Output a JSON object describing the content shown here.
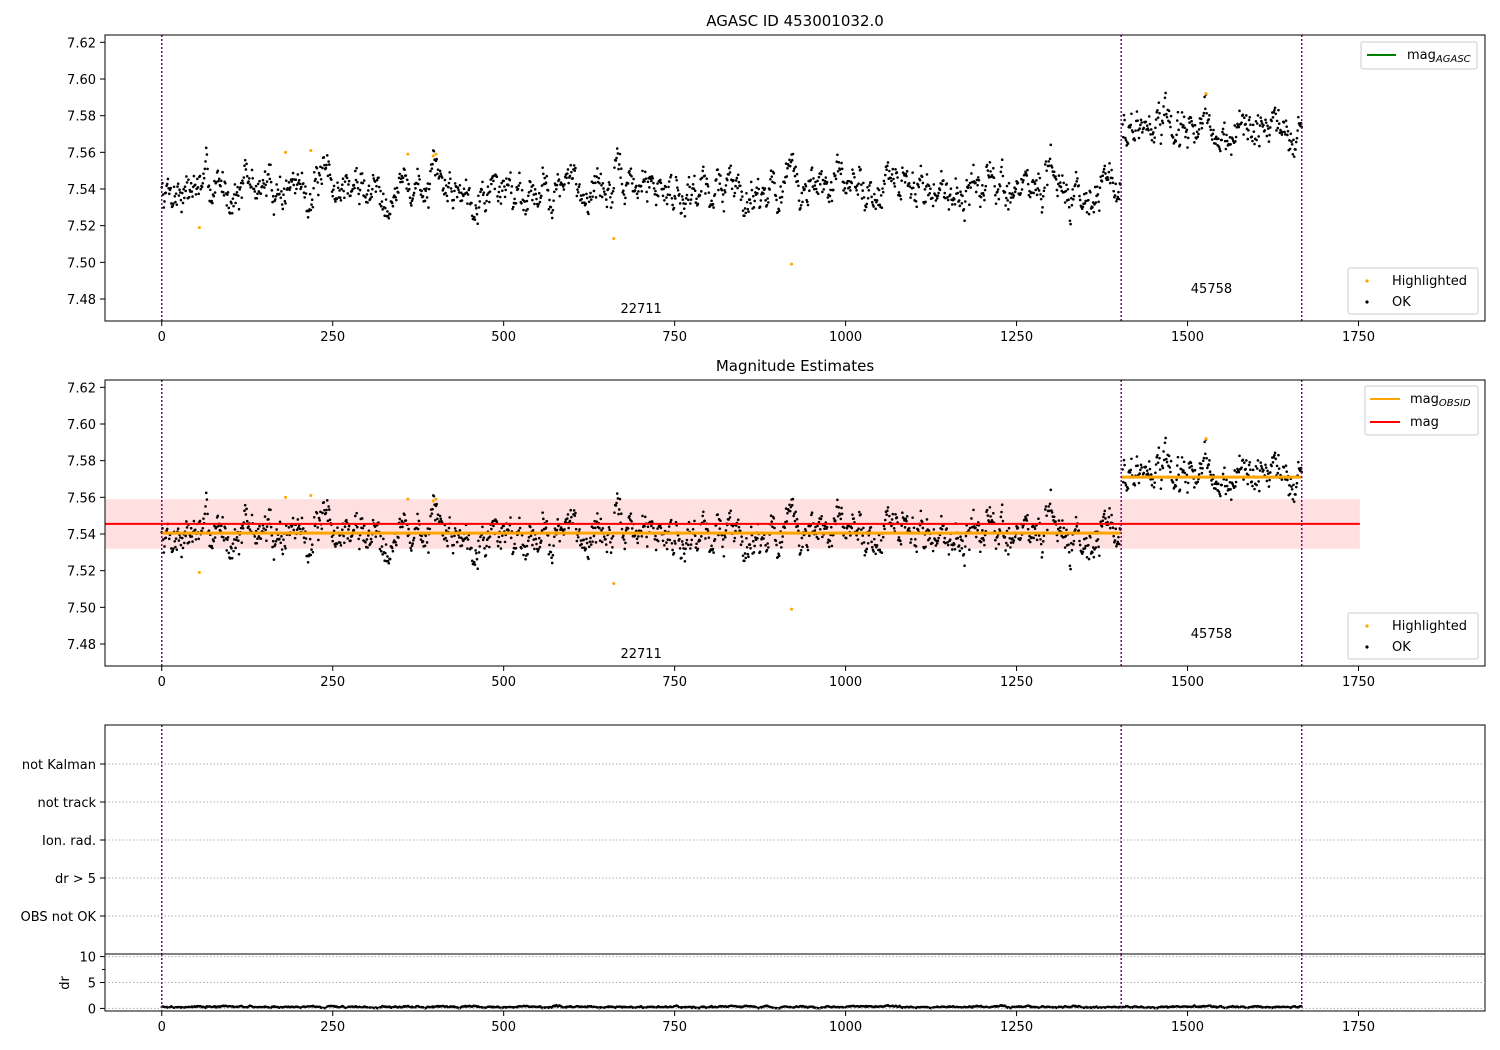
{
  "chart_data": [
    {
      "type": "scatter",
      "title": "AGASC ID 453001032.0",
      "xlim": [
        -83,
        1935
      ],
      "ylim": [
        7.468,
        7.624
      ],
      "x_ticks": [
        0,
        250,
        500,
        750,
        1000,
        1250,
        1500,
        1750
      ],
      "y_ticks": [
        7.48,
        7.5,
        7.52,
        7.54,
        7.56,
        7.58,
        7.6,
        7.62
      ],
      "obsid_boundaries": [
        0,
        1403,
        1667
      ],
      "obsid_labels": [
        {
          "text": "22711",
          "x": 701,
          "y": 7.475
        },
        {
          "text": "45758",
          "x": 1535,
          "y": 7.486
        }
      ],
      "series": [
        {
          "name": "OK",
          "noise": {
            "seed": 7,
            "segments": [
              {
                "x": [
                  0,
                  1402
                ],
                "center": 7.541,
                "spread": 0.009
              },
              {
                "x": [
                  1405,
                  1667
                ],
                "center": 7.571,
                "spread": 0.009
              }
            ]
          }
        },
        {
          "name": "Highlighted",
          "points": [
            [
              55,
              7.519
            ],
            [
              181,
              7.56
            ],
            [
              218,
              7.561
            ],
            [
              360,
              7.559
            ],
            [
              397,
              7.558
            ],
            [
              401,
              7.559
            ],
            [
              661,
              7.513
            ],
            [
              921,
              7.499
            ],
            [
              1527,
              7.592
            ]
          ]
        }
      ],
      "lines": [],
      "legend": [
        {
          "position": "top-right",
          "entries": [
            {
              "label": "mag",
              "sub": "AGASC",
              "kind": "line",
              "color": "#008000"
            }
          ]
        },
        {
          "position": "bottom-right",
          "entries": [
            {
              "label": "Highlighted",
              "kind": "marker",
              "color": "#ffa500"
            },
            {
              "label": "OK",
              "kind": "marker",
              "color": "#000000"
            }
          ]
        }
      ]
    },
    {
      "type": "scatter",
      "title": "Magnitude Estimates",
      "xlim": [
        -83,
        1935
      ],
      "ylim": [
        7.468,
        7.624
      ],
      "x_ticks": [
        0,
        250,
        500,
        750,
        1000,
        1250,
        1500,
        1750
      ],
      "y_ticks": [
        7.48,
        7.5,
        7.52,
        7.54,
        7.56,
        7.58,
        7.6,
        7.62
      ],
      "obsid_boundaries": [
        0,
        1403,
        1667
      ],
      "obsid_labels": [
        {
          "text": "22711",
          "x": 701,
          "y": 7.475
        },
        {
          "text": "45758",
          "x": 1535,
          "y": 7.486
        }
      ],
      "band": {
        "x": [
          -83,
          1752
        ],
        "y": [
          7.532,
          7.559
        ],
        "color": "#ffcccc"
      },
      "series": [
        {
          "name": "OK",
          "noise": {
            "seed": 7,
            "segments": [
              {
                "x": [
                  0,
                  1402
                ],
                "center": 7.541,
                "spread": 0.009
              },
              {
                "x": [
                  1405,
                  1667
                ],
                "center": 7.571,
                "spread": 0.009
              }
            ]
          }
        },
        {
          "name": "Highlighted",
          "points": [
            [
              55,
              7.519
            ],
            [
              181,
              7.56
            ],
            [
              218,
              7.561
            ],
            [
              360,
              7.559
            ],
            [
              397,
              7.558
            ],
            [
              401,
              7.559
            ],
            [
              661,
              7.513
            ],
            [
              921,
              7.499
            ],
            [
              1527,
              7.592
            ]
          ]
        }
      ],
      "lines": [
        {
          "name": "mag OBSID 22711",
          "x": [
            0,
            1402
          ],
          "y": [
            7.5405,
            7.5405
          ],
          "color": "#ffa500"
        },
        {
          "name": "mag OBSID 45758",
          "x": [
            1403,
            1667
          ],
          "y": [
            7.571,
            7.571
          ],
          "color": "#ffa500"
        },
        {
          "name": "mag",
          "x": [
            -83,
            1752
          ],
          "y": [
            7.5455,
            7.5455
          ],
          "color": "#ff0000"
        }
      ],
      "legend": [
        {
          "position": "top-right",
          "entries": [
            {
              "label": "mag",
              "sub": "OBSID",
              "kind": "line",
              "color": "#ffa500"
            },
            {
              "label": "mag",
              "sub": "",
              "kind": "line",
              "color": "#ff0000"
            }
          ]
        },
        {
          "position": "bottom-right",
          "entries": [
            {
              "label": "Highlighted",
              "kind": "marker",
              "color": "#ffa500"
            },
            {
              "label": "OK",
              "kind": "marker",
              "color": "#000000"
            }
          ]
        }
      ]
    },
    {
      "type": "scatter",
      "title": "",
      "categories": [
        "not Kalman",
        "not track",
        "Ion. rad.",
        "dr > 5",
        "OBS not OK"
      ],
      "xlim": [
        -83,
        1935
      ],
      "obsid_boundaries": [
        0,
        1403,
        1667
      ],
      "grid": "dotted"
    },
    {
      "type": "scatter",
      "title": "",
      "ylabel": "dr",
      "xlim": [
        -83,
        1935
      ],
      "ylim": [
        -0.5,
        10.5
      ],
      "x_ticks": [
        0,
        250,
        500,
        750,
        1000,
        1250,
        1500,
        1750
      ],
      "y_ticks": [
        0,
        5,
        10
      ],
      "obsid_boundaries": [
        0,
        1403,
        1667
      ],
      "grid": "dotted",
      "series": [
        {
          "name": "dr",
          "noise": {
            "seed": 3,
            "segments": [
              {
                "x": [
                  0,
                  1667
                ],
                "center": 0.3,
                "spread": 0.15
              }
            ]
          }
        }
      ]
    }
  ]
}
